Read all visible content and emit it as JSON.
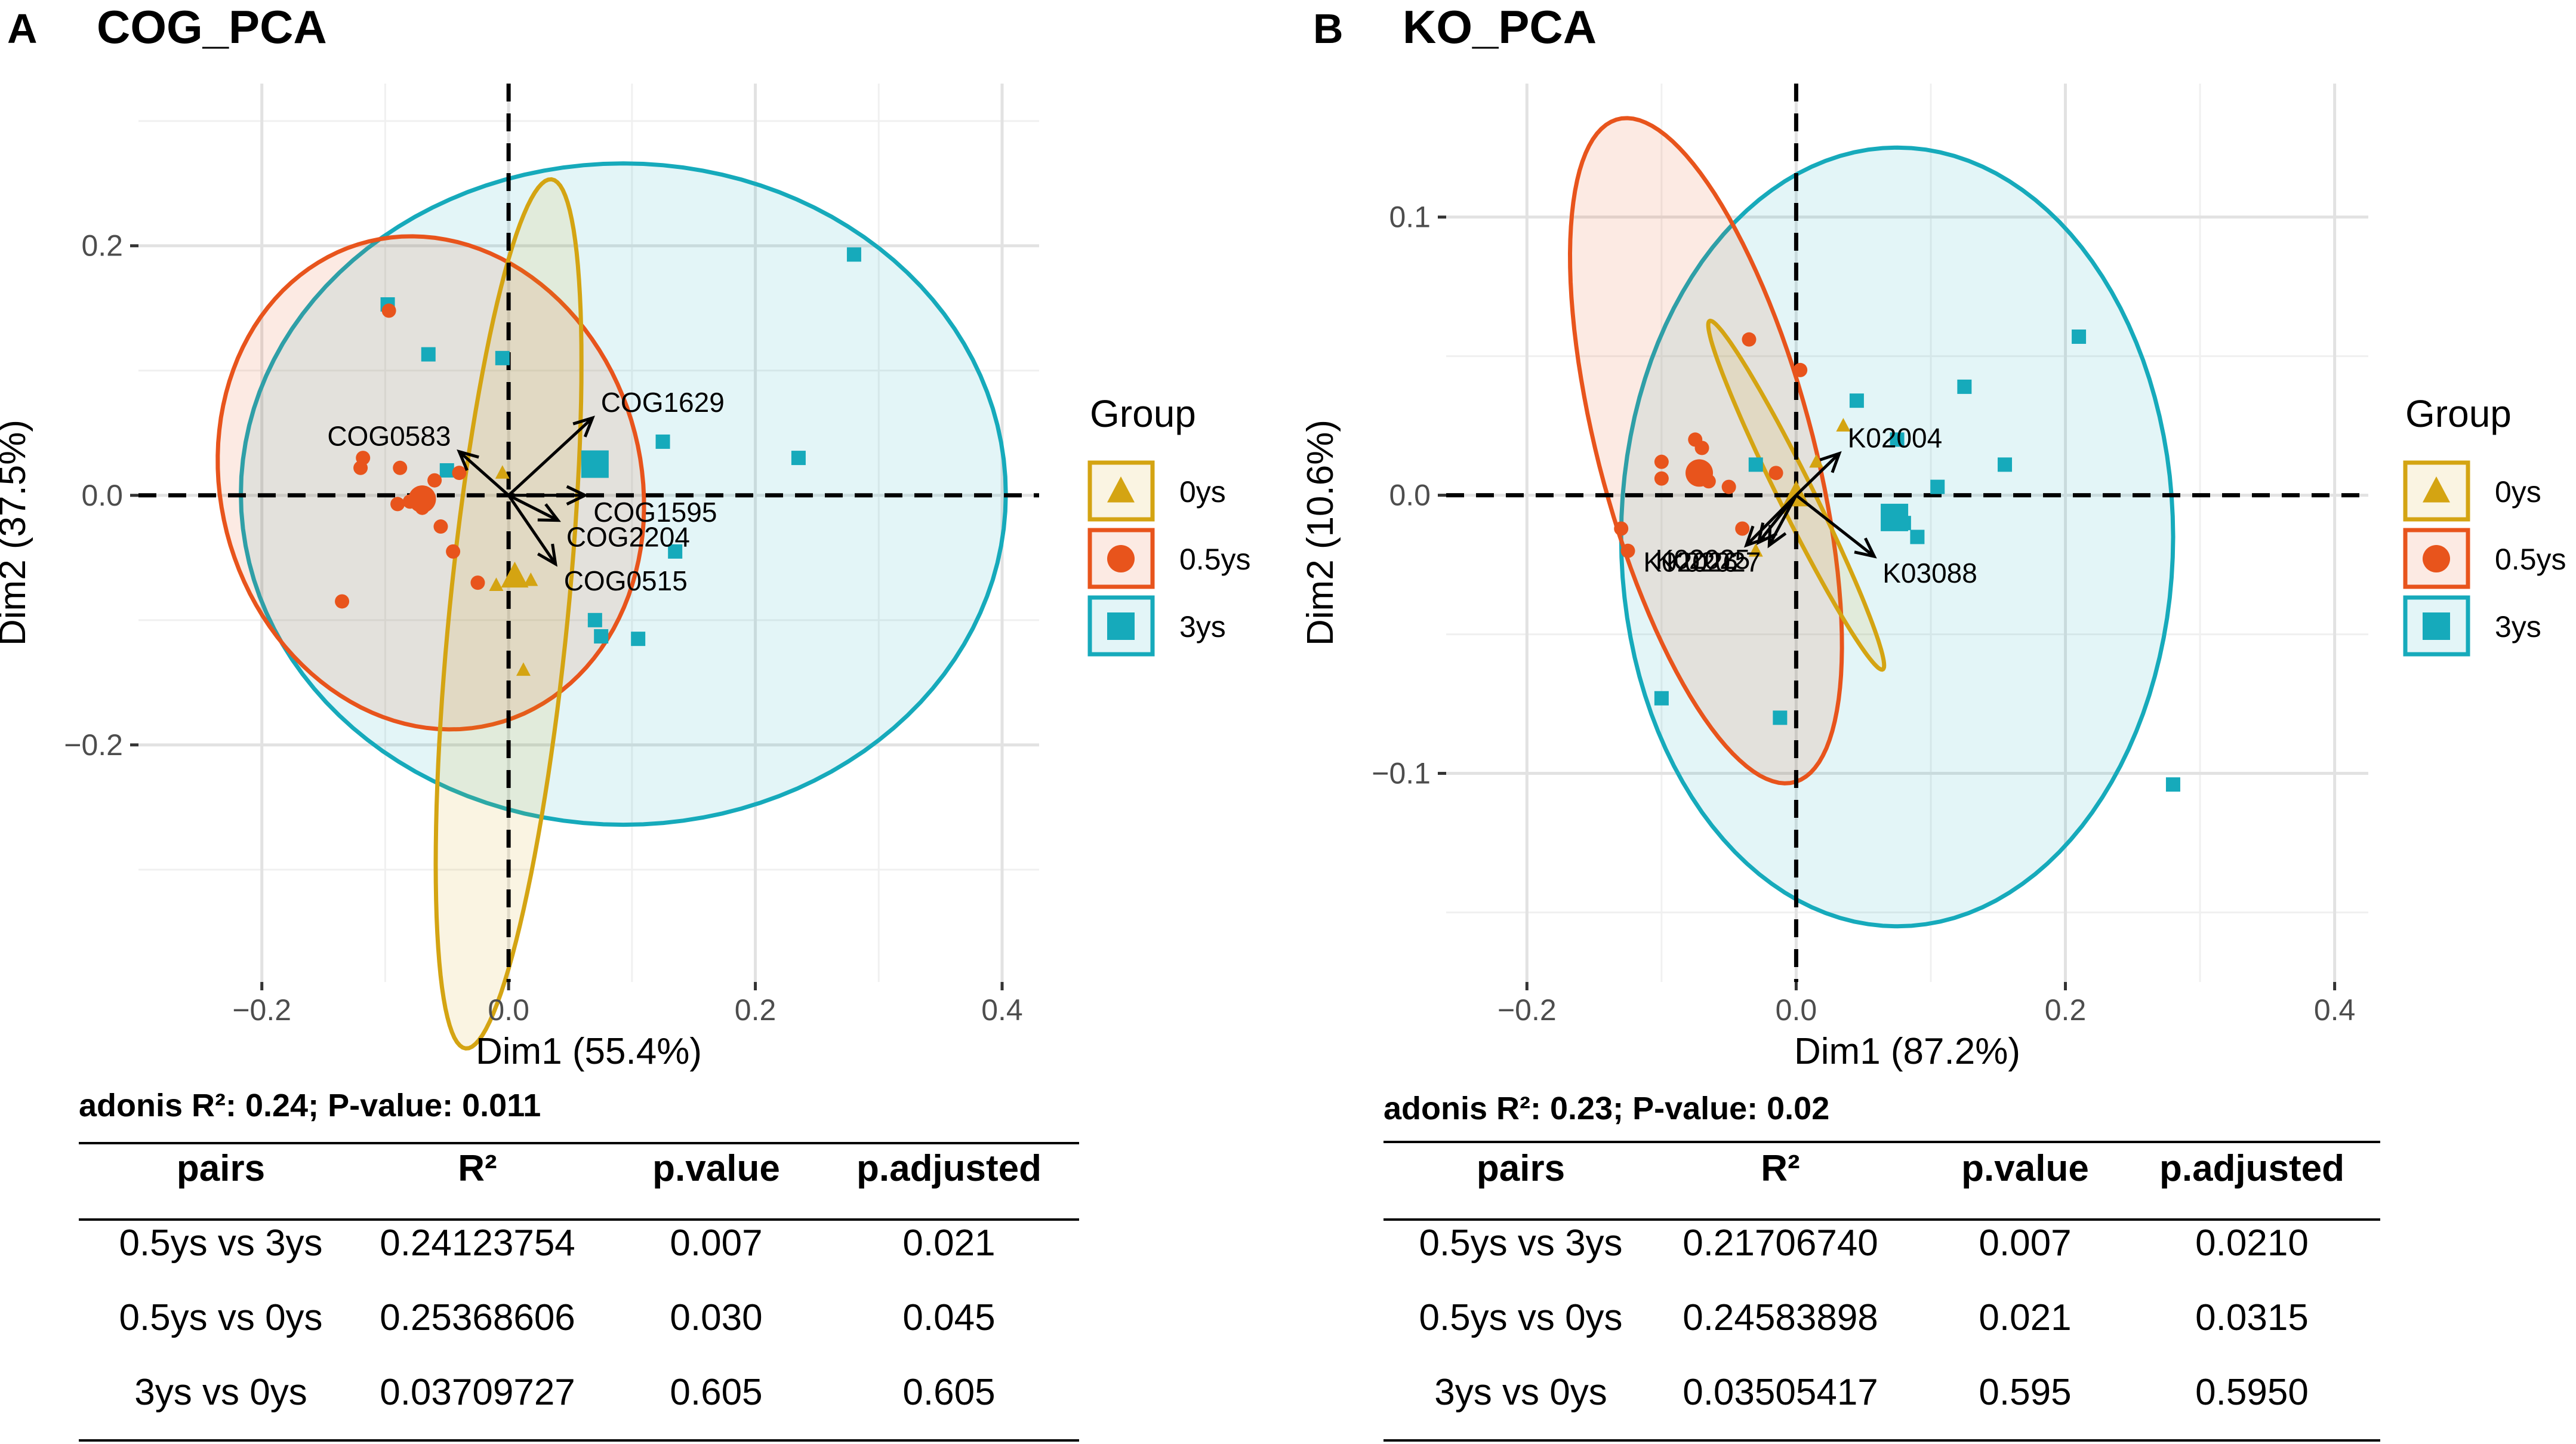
{
  "chart_data": [
    {
      "type": "scatter",
      "panel_letter": "A",
      "title": "COG_PCA",
      "xlabel": "Dim1 (55.4%)",
      "ylabel": "Dim2 (37.5%)",
      "xlim": [
        -0.3,
        0.43
      ],
      "ylim": [
        -0.39,
        0.33
      ],
      "xticks": [
        -0.2,
        0.0,
        0.2,
        0.4
      ],
      "xtick_labels": [
        "−0.2",
        "0.0",
        "0.2",
        "0.4"
      ],
      "yticks": [
        -0.2,
        0.0,
        0.2
      ],
      "ytick_labels": [
        "−0.2",
        "0.0",
        "0.2"
      ],
      "grid": true,
      "legend": {
        "title": "Group",
        "position": "right",
        "entries": [
          {
            "label": "0ys",
            "shape": "triangle",
            "color": "#D4A412"
          },
          {
            "label": "0.5ys",
            "shape": "circle",
            "color": "#E8541C"
          },
          {
            "label": "3ys",
            "shape": "square",
            "color": "#16AABB"
          }
        ]
      },
      "series": [
        {
          "name": "0ys",
          "shape": "triangle",
          "color": "#D4A412",
          "points": [
            [
              -0.005,
              0.018
            ],
            [
              0.008,
              -0.065
            ],
            [
              -0.01,
              -0.072
            ],
            [
              0.018,
              -0.068
            ],
            [
              0.012,
              -0.14
            ]
          ],
          "centroid": [
            0.005,
            -0.065
          ],
          "ellipse": {
            "cx": 0.0,
            "cy": -0.095,
            "rx": 0.048,
            "ry": 0.35,
            "angle_deg": -5.7
          }
        },
        {
          "name": "0.5ys",
          "shape": "circle",
          "color": "#E8541C",
          "points": [
            [
              -0.097,
              0.148
            ],
            [
              -0.118,
              0.03
            ],
            [
              -0.12,
              0.022
            ],
            [
              -0.088,
              0.022
            ],
            [
              -0.06,
              0.012
            ],
            [
              -0.04,
              0.018
            ],
            [
              -0.09,
              -0.007
            ],
            [
              -0.07,
              -0.01
            ],
            [
              -0.055,
              -0.025
            ],
            [
              -0.045,
              -0.045
            ],
            [
              -0.025,
              -0.07
            ],
            [
              -0.135,
              -0.085
            ],
            [
              -0.08,
              -0.005
            ]
          ],
          "centroid": [
            -0.07,
            -0.003
          ],
          "ellipse": {
            "cx": -0.063,
            "cy": 0.01,
            "rx": 0.2,
            "ry": 0.17,
            "angle_deg": -72.9
          }
        },
        {
          "name": "3ys",
          "shape": "square",
          "color": "#16AABB",
          "points": [
            [
              -0.098,
              0.153
            ],
            [
              -0.065,
              0.113
            ],
            [
              -0.005,
              0.11
            ],
            [
              -0.05,
              0.02
            ],
            [
              0.125,
              0.043
            ],
            [
              0.235,
              0.03
            ],
            [
              0.28,
              0.193
            ],
            [
              0.135,
              -0.045
            ],
            [
              0.07,
              -0.1
            ],
            [
              0.075,
              -0.113
            ],
            [
              0.105,
              -0.115
            ]
          ],
          "centroid": [
            0.07,
            0.025
          ],
          "ellipse": {
            "cx": 0.093,
            "cy": 0.001,
            "rx": 0.31,
            "ry": 0.265,
            "angle_deg": 0
          }
        }
      ],
      "arrows": [
        {
          "label": "COG1629",
          "x": 0.068,
          "y": 0.062
        },
        {
          "label": "COG0583",
          "x": -0.04,
          "y": 0.035
        },
        {
          "label": "COG1595",
          "x": 0.062,
          "y": 0.0
        },
        {
          "label": "COG2204",
          "x": 0.04,
          "y": -0.02
        },
        {
          "label": "COG0515",
          "x": 0.038,
          "y": -0.055
        }
      ],
      "annotation": "adonis R²: 0.24; P-value: 0.011",
      "table": {
        "columns": [
          "pairs",
          "R²",
          "p.value",
          "p.adjusted"
        ],
        "rows": [
          [
            "0.5ys vs 3ys",
            "0.24123754",
            "0.007",
            "0.021"
          ],
          [
            "0.5ys vs 0ys",
            "0.25368606",
            "0.030",
            "0.045"
          ],
          [
            "3ys vs 0ys",
            "0.03709727",
            "0.605",
            "0.605"
          ]
        ]
      }
    },
    {
      "type": "scatter",
      "panel_letter": "B",
      "title": "KO_PCA",
      "xlabel": "Dim1 (87.2%)",
      "ylabel": "Dim2 (10.6%)",
      "xlim": [
        -0.26,
        0.425
      ],
      "ylim": [
        -0.175,
        0.148
      ],
      "xticks": [
        -0.2,
        0.0,
        0.2,
        0.4
      ],
      "xtick_labels": [
        "−0.2",
        "0.0",
        "0.2",
        "0.4"
      ],
      "yticks": [
        -0.1,
        0.0,
        0.1
      ],
      "ytick_labels": [
        "−0.1",
        "0.0",
        "0.1"
      ],
      "grid": true,
      "legend": {
        "title": "Group",
        "position": "right",
        "entries": [
          {
            "label": "0ys",
            "shape": "triangle",
            "color": "#D4A412"
          },
          {
            "label": "0.5ys",
            "shape": "circle",
            "color": "#E8541C"
          },
          {
            "label": "3ys",
            "shape": "square",
            "color": "#16AABB"
          }
        ]
      },
      "series": [
        {
          "name": "0ys",
          "shape": "triangle",
          "color": "#D4A412",
          "points": [
            [
              -0.03,
              -0.02
            ],
            [
              0.015,
              0.012
            ],
            [
              0.035,
              0.025
            ]
          ],
          "centroid": [
            0.0,
            0.0
          ],
          "ellipse": {
            "cx": 0.0,
            "cy": -0.0,
            "rx": 0.09,
            "ry": 0.01,
            "angle_deg": -43.8
          }
        },
        {
          "name": "0.5ys",
          "shape": "circle",
          "color": "#E8541C",
          "points": [
            [
              -0.035,
              0.056
            ],
            [
              0.003,
              0.045
            ],
            [
              -0.075,
              0.02
            ],
            [
              -0.1,
              0.012
            ],
            [
              -0.07,
              0.017
            ],
            [
              -0.1,
              0.006
            ],
            [
              -0.065,
              0.005
            ],
            [
              -0.05,
              0.003
            ],
            [
              -0.015,
              0.008
            ],
            [
              -0.13,
              -0.012
            ],
            [
              -0.125,
              -0.02
            ],
            [
              -0.04,
              -0.012
            ]
          ],
          "centroid": [
            -0.072,
            0.008
          ],
          "ellipse": {
            "cx": -0.067,
            "cy": 0.016,
            "rx": 0.14,
            "ry": 0.07,
            "angle_deg": -53.1
          }
        },
        {
          "name": "3ys",
          "shape": "square",
          "color": "#16AABB",
          "points": [
            [
              0.21,
              0.057
            ],
            [
              0.125,
              0.039
            ],
            [
              0.045,
              0.034
            ],
            [
              0.075,
              0.02
            ],
            [
              0.155,
              0.011
            ],
            [
              0.105,
              0.003
            ],
            [
              0.09,
              -0.015
            ],
            [
              0.08,
              -0.01
            ],
            [
              -0.03,
              0.011
            ],
            [
              -0.1,
              -0.073
            ],
            [
              -0.012,
              -0.08
            ],
            [
              0.28,
              -0.104
            ]
          ],
          "centroid": [
            0.073,
            -0.008
          ],
          "ellipse": {
            "cx": 0.075,
            "cy": -0.015,
            "rx": 0.205,
            "ry": 0.14,
            "angle_deg": 0
          }
        }
      ],
      "arrows": [
        {
          "label": "K02026",
          "x": -0.037,
          "y": -0.018
        },
        {
          "label": "K02004",
          "x": 0.032,
          "y": 0.015
        },
        {
          "label": "K02025",
          "x": -0.028,
          "y": -0.017
        },
        {
          "label": "K02027",
          "x": -0.02,
          "y": -0.018
        },
        {
          "label": "K03088",
          "x": 0.058,
          "y": -0.022
        }
      ],
      "annotation": "adonis R²: 0.23; P-value: 0.02",
      "table": {
        "columns": [
          "pairs",
          "R²",
          "p.value",
          "p.adjusted"
        ],
        "rows": [
          [
            "0.5ys vs 3ys",
            "0.21706740",
            "0.007",
            "0.0210"
          ],
          [
            "0.5ys vs 0ys",
            "0.24583898",
            "0.021",
            "0.0315"
          ],
          [
            "3ys vs 0ys",
            "0.03505417",
            "0.595",
            "0.5950"
          ]
        ]
      }
    }
  ]
}
